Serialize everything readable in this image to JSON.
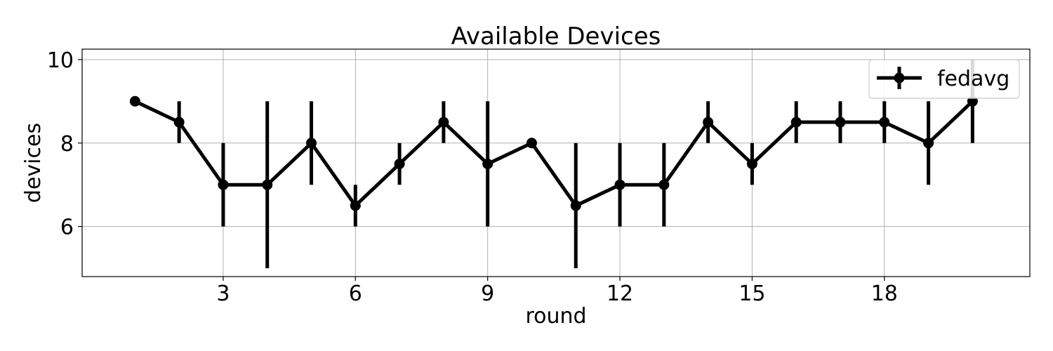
{
  "chart_data": {
    "type": "line",
    "title": "Available Devices",
    "xlabel": "round",
    "ylabel": "devices",
    "xlim": [
      -0.2,
      21.3
    ],
    "ylim": [
      4.8,
      10.25
    ],
    "xticks": [
      3,
      6,
      9,
      12,
      15,
      18
    ],
    "yticks": [
      6,
      8,
      10
    ],
    "grid": true,
    "legend_position": "top-right",
    "series": [
      {
        "name": "fedavg",
        "color": "#000000",
        "marker": "circle",
        "x": [
          1,
          2,
          3,
          4,
          5,
          6,
          7,
          8,
          9,
          10,
          11,
          12,
          13,
          14,
          15,
          16,
          17,
          18,
          19,
          20
        ],
        "y": [
          9,
          8.5,
          7,
          7,
          8,
          6.5,
          7.5,
          8.5,
          7.5,
          8,
          6.5,
          7,
          7,
          8.5,
          7.5,
          8.5,
          8.5,
          8.5,
          8,
          9
        ],
        "err_low": [
          9,
          8,
          6,
          5,
          7,
          6,
          7,
          8,
          6,
          8,
          5,
          6,
          6,
          8,
          7,
          8,
          8,
          8,
          7,
          8
        ],
        "err_high": [
          9,
          9,
          8,
          9,
          9,
          7,
          8,
          9,
          9,
          8,
          8,
          8,
          8,
          9,
          8,
          9,
          9,
          9,
          9,
          10
        ]
      }
    ]
  }
}
